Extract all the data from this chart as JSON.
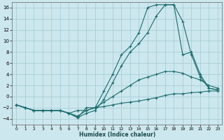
{
  "xlabel": "Humidex (Indice chaleur)",
  "background_color": "#cce8ee",
  "grid_color": "#aacdd5",
  "line_color": "#1a6b6b",
  "xlim": [
    -0.5,
    23.5
  ],
  "ylim": [
    -5,
    17
  ],
  "xticks": [
    0,
    1,
    2,
    3,
    4,
    5,
    6,
    7,
    8,
    9,
    10,
    11,
    12,
    13,
    14,
    15,
    16,
    17,
    18,
    19,
    20,
    21,
    22,
    23
  ],
  "yticks": [
    -4,
    -2,
    0,
    2,
    4,
    6,
    8,
    10,
    12,
    14,
    16
  ],
  "line1_x": [
    0,
    1,
    2,
    3,
    4,
    5,
    6,
    7,
    8,
    9,
    10,
    11,
    12,
    13,
    14,
    15,
    16,
    17,
    18,
    19,
    20,
    21,
    22,
    23
  ],
  "line1_y": [
    -1.5,
    -2.0,
    -2.5,
    -2.5,
    -2.5,
    -2.5,
    -3.0,
    -2.5,
    -2.5,
    -2.0,
    -1.8,
    -1.5,
    -1.2,
    -1.0,
    -0.8,
    -0.5,
    -0.2,
    0.2,
    0.5,
    0.5,
    0.7,
    0.8,
    1.0,
    1.0
  ],
  "line2_x": [
    0,
    1,
    2,
    3,
    4,
    5,
    6,
    7,
    8,
    9,
    10,
    11,
    12,
    13,
    14,
    15,
    16,
    17,
    18,
    19,
    20,
    21,
    22,
    23
  ],
  "line2_y": [
    -1.5,
    -2.0,
    -2.5,
    -2.5,
    -2.5,
    -2.5,
    -3.0,
    -3.5,
    -2.5,
    -2.0,
    -1.0,
    0.0,
    1.0,
    2.0,
    3.0,
    3.5,
    4.0,
    4.5,
    4.5,
    4.2,
    3.5,
    3.0,
    2.0,
    1.5
  ],
  "line3_x": [
    0,
    1,
    2,
    3,
    4,
    5,
    6,
    7,
    8,
    9,
    10,
    11,
    12,
    13,
    14,
    15,
    16,
    17,
    18,
    19,
    20,
    21,
    22,
    23
  ],
  "line3_y": [
    -1.5,
    -2.0,
    -2.5,
    -2.5,
    -2.5,
    -2.5,
    -3.0,
    -3.8,
    -3.0,
    -2.5,
    -0.5,
    2.5,
    5.5,
    8.0,
    9.5,
    11.5,
    14.5,
    16.5,
    16.5,
    13.5,
    7.5,
    3.5,
    1.5,
    1.2
  ],
  "line4_x": [
    0,
    1,
    2,
    3,
    4,
    5,
    6,
    7,
    8,
    9,
    10,
    11,
    12,
    13,
    14,
    15,
    16,
    17,
    18,
    19,
    20,
    21,
    22,
    23
  ],
  "line4_y": [
    -1.5,
    -2.0,
    -2.5,
    -2.5,
    -2.5,
    -2.5,
    -3.0,
    -3.8,
    -2.0,
    -2.0,
    1.0,
    4.0,
    7.5,
    9.0,
    11.5,
    16.0,
    16.5,
    16.5,
    16.5,
    7.5,
    8.0,
    4.0,
    1.5,
    1.2
  ]
}
